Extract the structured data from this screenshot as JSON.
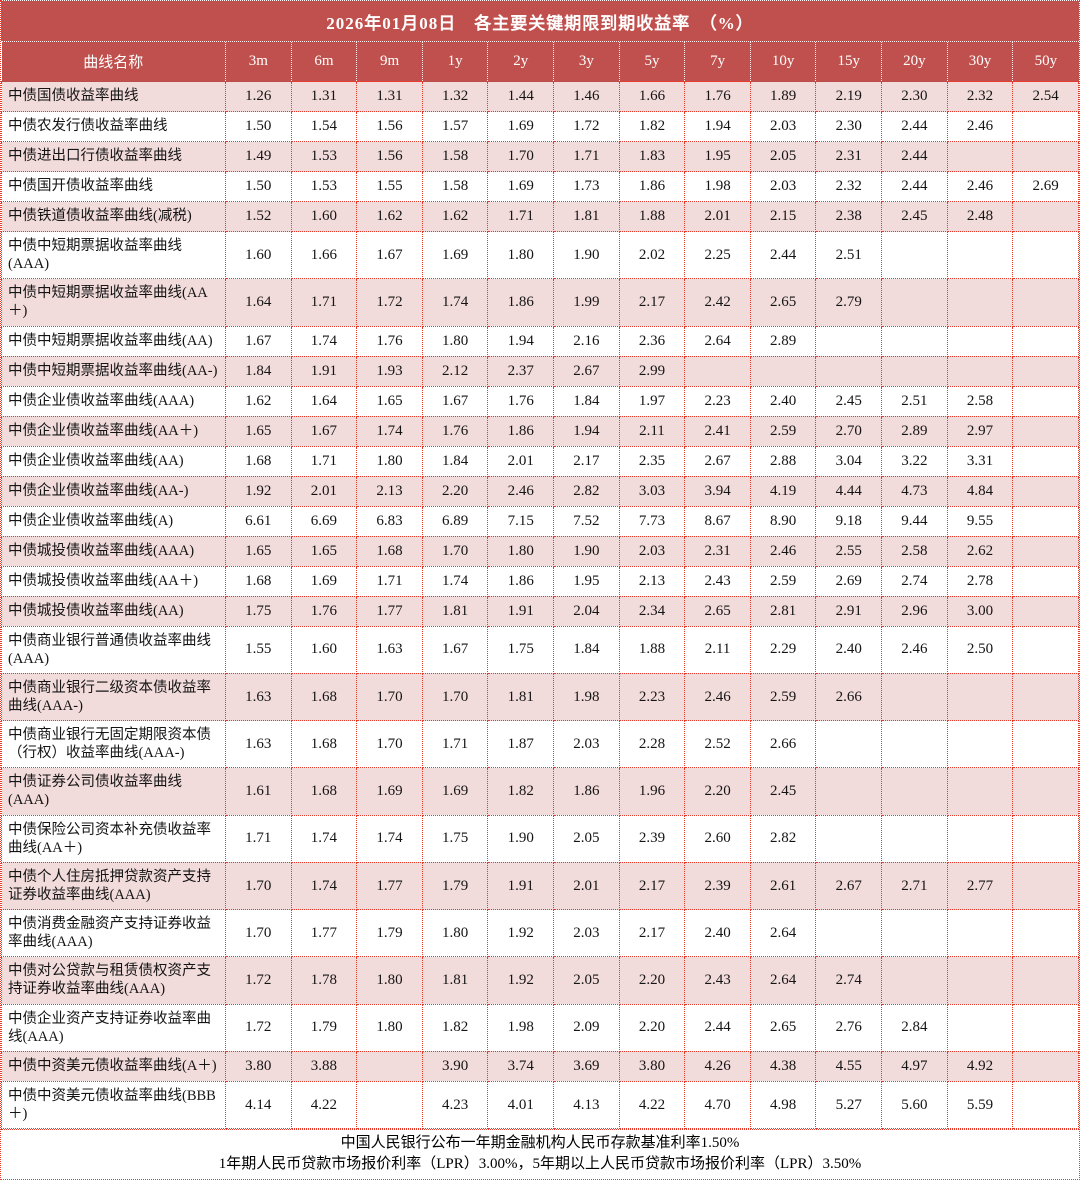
{
  "title": "2026年01月08日　各主要关键期限到期收益率　（%）",
  "table": {
    "columns": [
      "曲线名称",
      "3m",
      "6m",
      "9m",
      "1y",
      "2y",
      "3y",
      "5y",
      "7y",
      "10y",
      "15y",
      "20y",
      "30y",
      "50y"
    ],
    "rows": [
      {
        "name": "中债国债收益率曲线",
        "values": [
          "1.26",
          "1.31",
          "1.31",
          "1.32",
          "1.44",
          "1.46",
          "1.66",
          "1.76",
          "1.89",
          "2.19",
          "2.30",
          "2.32",
          "2.54"
        ]
      },
      {
        "name": "中债农发行债收益率曲线",
        "values": [
          "1.50",
          "1.54",
          "1.56",
          "1.57",
          "1.69",
          "1.72",
          "1.82",
          "1.94",
          "2.03",
          "2.30",
          "2.44",
          "2.46",
          ""
        ]
      },
      {
        "name": "中债进出口行债收益率曲线",
        "values": [
          "1.49",
          "1.53",
          "1.56",
          "1.58",
          "1.70",
          "1.71",
          "1.83",
          "1.95",
          "2.05",
          "2.31",
          "2.44",
          "",
          ""
        ]
      },
      {
        "name": "中债国开债收益率曲线",
        "values": [
          "1.50",
          "1.53",
          "1.55",
          "1.58",
          "1.69",
          "1.73",
          "1.86",
          "1.98",
          "2.03",
          "2.32",
          "2.44",
          "2.46",
          "2.69"
        ]
      },
      {
        "name": "中债铁道债收益率曲线(减税)",
        "values": [
          "1.52",
          "1.60",
          "1.62",
          "1.62",
          "1.71",
          "1.81",
          "1.88",
          "2.01",
          "2.15",
          "2.38",
          "2.45",
          "2.48",
          ""
        ]
      },
      {
        "name": "中债中短期票据收益率曲线(AAA)",
        "values": [
          "1.60",
          "1.66",
          "1.67",
          "1.69",
          "1.80",
          "1.90",
          "2.02",
          "2.25",
          "2.44",
          "2.51",
          "",
          "",
          ""
        ]
      },
      {
        "name": "中债中短期票据收益率曲线(AA＋)",
        "values": [
          "1.64",
          "1.71",
          "1.72",
          "1.74",
          "1.86",
          "1.99",
          "2.17",
          "2.42",
          "2.65",
          "2.79",
          "",
          "",
          ""
        ]
      },
      {
        "name": "中债中短期票据收益率曲线(AA)",
        "values": [
          "1.67",
          "1.74",
          "1.76",
          "1.80",
          "1.94",
          "2.16",
          "2.36",
          "2.64",
          "2.89",
          "",
          "",
          "",
          ""
        ]
      },
      {
        "name": "中债中短期票据收益率曲线(AA-)",
        "values": [
          "1.84",
          "1.91",
          "1.93",
          "2.12",
          "2.37",
          "2.67",
          "2.99",
          "",
          "",
          "",
          "",
          "",
          ""
        ]
      },
      {
        "name": "中债企业债收益率曲线(AAA)",
        "values": [
          "1.62",
          "1.64",
          "1.65",
          "1.67",
          "1.76",
          "1.84",
          "1.97",
          "2.23",
          "2.40",
          "2.45",
          "2.51",
          "2.58",
          ""
        ]
      },
      {
        "name": "中债企业债收益率曲线(AA＋)",
        "values": [
          "1.65",
          "1.67",
          "1.74",
          "1.76",
          "1.86",
          "1.94",
          "2.11",
          "2.41",
          "2.59",
          "2.70",
          "2.89",
          "2.97",
          ""
        ]
      },
      {
        "name": "中债企业债收益率曲线(AA)",
        "values": [
          "1.68",
          "1.71",
          "1.80",
          "1.84",
          "2.01",
          "2.17",
          "2.35",
          "2.67",
          "2.88",
          "3.04",
          "3.22",
          "3.31",
          ""
        ]
      },
      {
        "name": "中债企业债收益率曲线(AA-)",
        "values": [
          "1.92",
          "2.01",
          "2.13",
          "2.20",
          "2.46",
          "2.82",
          "3.03",
          "3.94",
          "4.19",
          "4.44",
          "4.73",
          "4.84",
          ""
        ]
      },
      {
        "name": "中债企业债收益率曲线(A)",
        "values": [
          "6.61",
          "6.69",
          "6.83",
          "6.89",
          "7.15",
          "7.52",
          "7.73",
          "8.67",
          "8.90",
          "9.18",
          "9.44",
          "9.55",
          ""
        ]
      },
      {
        "name": "中债城投债收益率曲线(AAA)",
        "values": [
          "1.65",
          "1.65",
          "1.68",
          "1.70",
          "1.80",
          "1.90",
          "2.03",
          "2.31",
          "2.46",
          "2.55",
          "2.58",
          "2.62",
          ""
        ]
      },
      {
        "name": "中债城投债收益率曲线(AA＋)",
        "values": [
          "1.68",
          "1.69",
          "1.71",
          "1.74",
          "1.86",
          "1.95",
          "2.13",
          "2.43",
          "2.59",
          "2.69",
          "2.74",
          "2.78",
          ""
        ]
      },
      {
        "name": "中债城投债收益率曲线(AA)",
        "values": [
          "1.75",
          "1.76",
          "1.77",
          "1.81",
          "1.91",
          "2.04",
          "2.34",
          "2.65",
          "2.81",
          "2.91",
          "2.96",
          "3.00",
          ""
        ]
      },
      {
        "name": "中债商业银行普通债收益率曲线(AAA)",
        "values": [
          "1.55",
          "1.60",
          "1.63",
          "1.67",
          "1.75",
          "1.84",
          "1.88",
          "2.11",
          "2.29",
          "2.40",
          "2.46",
          "2.50",
          ""
        ]
      },
      {
        "name": "中债商业银行二级资本债收益率曲线(AAA-)",
        "values": [
          "1.63",
          "1.68",
          "1.70",
          "1.70",
          "1.81",
          "1.98",
          "2.23",
          "2.46",
          "2.59",
          "2.66",
          "",
          "",
          ""
        ]
      },
      {
        "name": "中债商业银行无固定期限资本债（行权）收益率曲线(AAA-)",
        "values": [
          "1.63",
          "1.68",
          "1.70",
          "1.71",
          "1.87",
          "2.03",
          "2.28",
          "2.52",
          "2.66",
          "",
          "",
          "",
          ""
        ]
      },
      {
        "name": "中债证券公司债收益率曲线(AAA)",
        "values": [
          "1.61",
          "1.68",
          "1.69",
          "1.69",
          "1.82",
          "1.86",
          "1.96",
          "2.20",
          "2.45",
          "",
          "",
          "",
          ""
        ]
      },
      {
        "name": "中债保险公司资本补充债收益率曲线(AA＋)",
        "values": [
          "1.71",
          "1.74",
          "1.74",
          "1.75",
          "1.90",
          "2.05",
          "2.39",
          "2.60",
          "2.82",
          "",
          "",
          "",
          ""
        ]
      },
      {
        "name": "中债个人住房抵押贷款资产支持证券收益率曲线(AAA)",
        "values": [
          "1.70",
          "1.74",
          "1.77",
          "1.79",
          "1.91",
          "2.01",
          "2.17",
          "2.39",
          "2.61",
          "2.67",
          "2.71",
          "2.77",
          ""
        ]
      },
      {
        "name": "中债消费金融资产支持证券收益率曲线(AAA)",
        "values": [
          "1.70",
          "1.77",
          "1.79",
          "1.80",
          "1.92",
          "2.03",
          "2.17",
          "2.40",
          "2.64",
          "",
          "",
          "",
          ""
        ]
      },
      {
        "name": "中债对公贷款与租赁债权资产支持证券收益率曲线(AAA)",
        "values": [
          "1.72",
          "1.78",
          "1.80",
          "1.81",
          "1.92",
          "2.05",
          "2.20",
          "2.43",
          "2.64",
          "2.74",
          "",
          "",
          ""
        ]
      },
      {
        "name": "中债企业资产支持证券收益率曲线(AAA)",
        "values": [
          "1.72",
          "1.79",
          "1.80",
          "1.82",
          "1.98",
          "2.09",
          "2.20",
          "2.44",
          "2.65",
          "2.76",
          "2.84",
          "",
          ""
        ]
      },
      {
        "name": "中债中资美元债收益率曲线(A＋)",
        "values": [
          "3.80",
          "3.88",
          "",
          "3.90",
          "3.74",
          "3.69",
          "3.80",
          "4.26",
          "4.38",
          "4.55",
          "4.97",
          "4.92",
          ""
        ]
      },
      {
        "name": "中债中资美元债收益率曲线(BBB＋)",
        "values": [
          "4.14",
          "4.22",
          "",
          "4.23",
          "4.01",
          "4.13",
          "4.22",
          "4.70",
          "4.98",
          "5.27",
          "5.60",
          "5.59",
          ""
        ]
      }
    ]
  },
  "footnotes": [
    "中国人民银行公布一年期金融机构人民币存款基准利率1.50%",
    "1年期人民币贷款市场报价利率（LPR）3.00%，5年期以上人民币贷款市场报价利率（LPR）3.50%"
  ],
  "colors": {
    "header_bg": "#C0504D",
    "row_alt_bg": "#F2DCDB",
    "row_bg": "#FFFFFF",
    "border_red": "#E5392B",
    "text": "#141414"
  }
}
